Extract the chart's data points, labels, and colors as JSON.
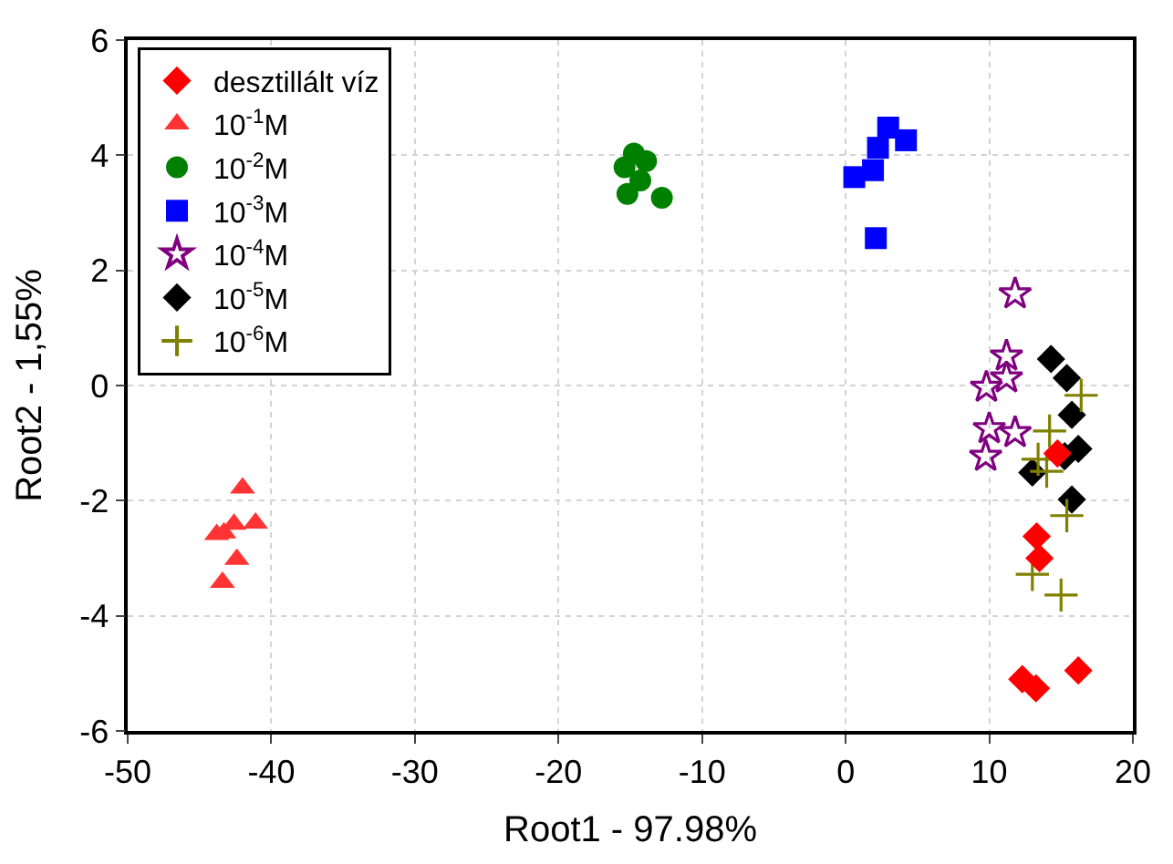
{
  "chart_data": {
    "type": "scatter",
    "xlabel": "Root1 - 97.98%",
    "ylabel": "Root2 - 1,55%",
    "xlim": [
      -50,
      20
    ],
    "xticks": [
      -50,
      -40,
      -30,
      -20,
      -10,
      0,
      10,
      20
    ],
    "ylim": [
      -6,
      6
    ],
    "yticks": [
      -6,
      -4,
      -2,
      0,
      2,
      4,
      6
    ],
    "grid": true,
    "legend": "top left",
    "series": [
      {
        "name": "desztillált víz",
        "color": "#ff0000",
        "marker": "diamond",
        "x": [
          14.75,
          13.3,
          13.5,
          12.3,
          13.25,
          16.2
        ],
        "values": [
          -1.18,
          -2.62,
          -3.0,
          -5.1,
          -5.26,
          -4.95
        ]
      },
      {
        "name": "10$^{-1}$M",
        "color": "#ff3333",
        "marker": "triangle",
        "x": [
          -42.0,
          -41.1,
          -42.6,
          -43.3,
          -43.8,
          -42.4,
          -43.4
        ],
        "values": [
          -1.78,
          -2.39,
          -2.41,
          -2.56,
          -2.59,
          -3.02,
          -3.42
        ]
      },
      {
        "name": "10$^{-2}$M",
        "color": "#008000",
        "marker": "circle",
        "x": [
          -14.75,
          -13.9,
          -15.4,
          -14.3,
          -15.2,
          -12.8
        ],
        "values": [
          4.03,
          3.9,
          3.79,
          3.56,
          3.33,
          3.26
        ]
      },
      {
        "name": "10$^{-3}$M",
        "color": "#0000ff",
        "marker": "square",
        "x": [
          2.96,
          4.2,
          2.25,
          1.9,
          0.6,
          2.1
        ],
        "values": [
          4.48,
          4.26,
          4.13,
          3.74,
          3.62,
          2.56
        ]
      },
      {
        "name": "10$^{-4}$M",
        "color": "#800080",
        "marker": "star",
        "x": [
          11.8,
          11.2,
          11.2,
          9.8,
          10.0,
          11.8,
          9.75
        ],
        "values": [
          1.59,
          0.51,
          0.13,
          -0.03,
          -0.75,
          -0.82,
          -1.23
        ]
      },
      {
        "name": "10$^{-5}$M",
        "color": "#000000",
        "marker": "diamond",
        "x": [
          14.3,
          15.4,
          15.75,
          16.2,
          15.25,
          13.0,
          15.75
        ],
        "values": [
          0.46,
          0.13,
          -0.51,
          -1.1,
          -1.23,
          -1.51,
          -1.98
        ]
      },
      {
        "name": "10$^{-6}$M",
        "color": "#808000",
        "marker": "cross",
        "x": [
          16.4,
          14.2,
          13.4,
          14.0,
          15.4,
          13.0,
          15.0
        ],
        "values": [
          -0.17,
          -0.79,
          -1.28,
          -1.49,
          -2.26,
          -3.28,
          -3.64
        ]
      }
    ]
  }
}
